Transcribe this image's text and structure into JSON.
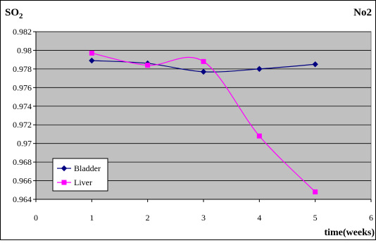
{
  "chart_data": {
    "type": "line",
    "ylabel": "SO",
    "ylabel_subscript": "2",
    "corner_label": "No2",
    "xlabel": "time(weeks)",
    "xlim": [
      0,
      6
    ],
    "ylim": [
      0.964,
      0.982
    ],
    "x_ticks": [
      "0",
      "1",
      "2",
      "3",
      "4",
      "5",
      "6"
    ],
    "y_ticks": [
      "0.964",
      "0.966",
      "0.968",
      "0.97",
      "0.972",
      "0.974",
      "0.976",
      "0.978",
      "0.98",
      "0.982"
    ],
    "grid": true,
    "legend_position": "bottom-left",
    "series": [
      {
        "name": "Bladder",
        "color": "#000080",
        "marker": "diamond",
        "x": [
          1,
          2,
          3,
          4,
          5
        ],
        "y": [
          0.9789,
          0.9786,
          0.9777,
          0.978,
          0.9785
        ]
      },
      {
        "name": "Liver",
        "color": "#ff00ff",
        "marker": "square",
        "x": [
          1,
          2,
          3,
          4,
          5
        ],
        "y": [
          0.9797,
          0.9784,
          0.9788,
          0.9708,
          0.9648
        ]
      }
    ]
  }
}
